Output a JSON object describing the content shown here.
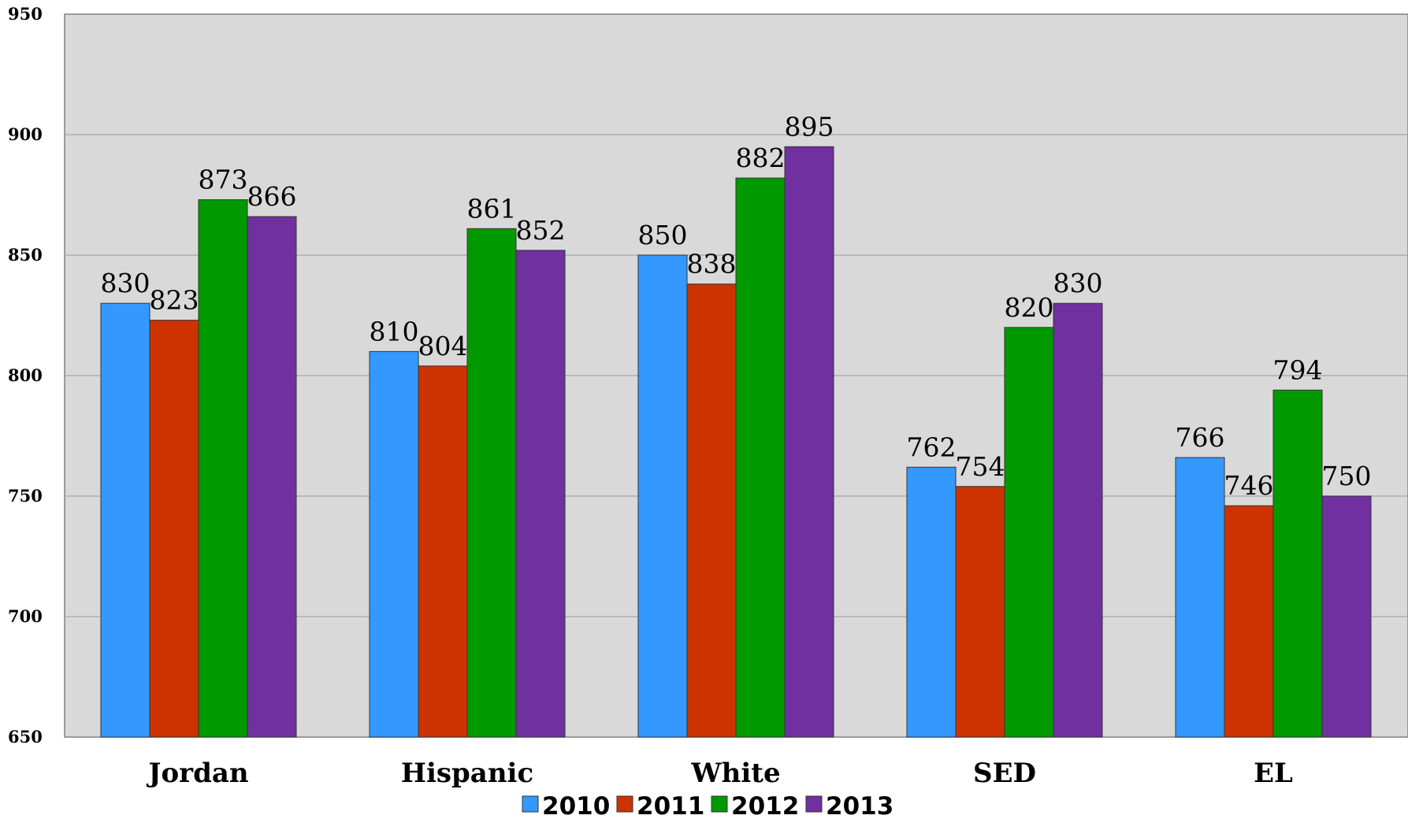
{
  "chart_data": {
    "type": "bar",
    "categories": [
      "Jordan",
      "Hispanic",
      "White",
      "SED",
      "EL"
    ],
    "series": [
      {
        "name": "2010",
        "color": "#3399ff",
        "values": [
          830,
          810,
          850,
          762,
          766
        ]
      },
      {
        "name": "2011",
        "color": "#cc3300",
        "values": [
          823,
          804,
          838,
          754,
          746
        ]
      },
      {
        "name": "2012",
        "color": "#009900",
        "values": [
          873,
          861,
          882,
          820,
          794
        ]
      },
      {
        "name": "2013",
        "color": "#7030a0",
        "values": [
          866,
          852,
          895,
          830,
          750
        ]
      }
    ],
    "ylim": [
      650,
      950
    ],
    "yticks": [
      650,
      700,
      750,
      800,
      850,
      900,
      950
    ],
    "grid": true,
    "legend_position": "bottom",
    "plot_background": "#d9d9d9",
    "gridline_color": "#a6a6a6"
  }
}
